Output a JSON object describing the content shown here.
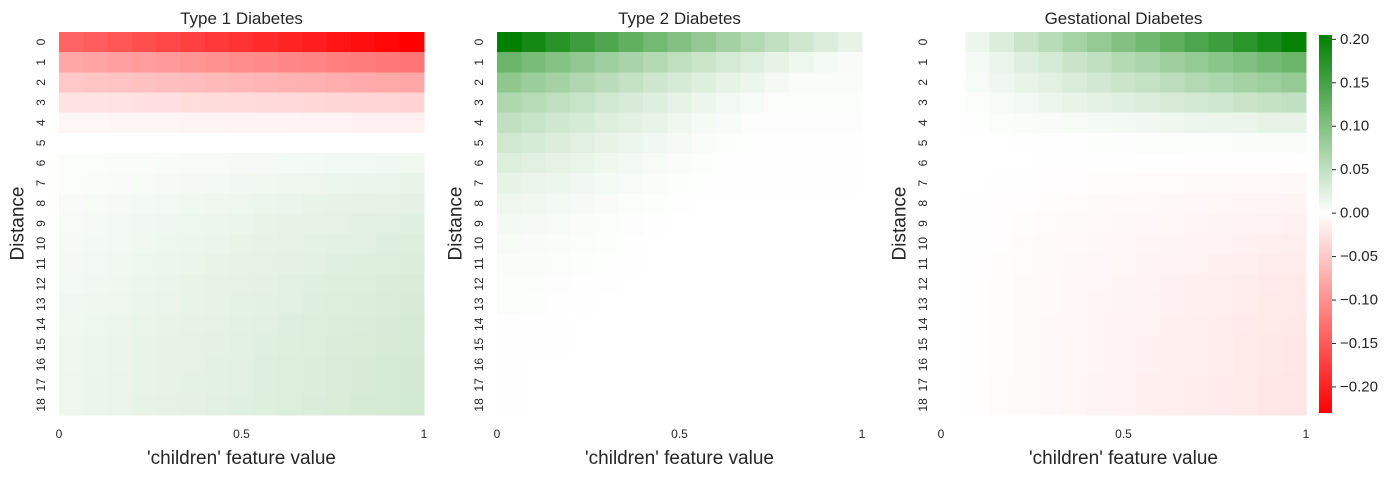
{
  "colorbar": {
    "ticks": [
      0.2,
      0.15,
      0.1,
      0.05,
      0.0,
      -0.05,
      -0.1,
      -0.15,
      -0.2
    ],
    "tick_labels": [
      "0.20",
      "0.15",
      "0.10",
      "0.05",
      "0.00",
      "−0.05",
      "−0.10",
      "−0.15",
      "−0.20"
    ],
    "vmin": -0.23,
    "vmax": 0.205,
    "colors": {
      "negative": "#ff0000",
      "zero": "#ffffff",
      "positive": "#008000"
    }
  },
  "chart_data": [
    {
      "type": "heatmap",
      "title": "Type 1 Diabetes",
      "xlabel": "'children' feature value",
      "ylabel": "Distance",
      "x_ticks": [
        "0",
        "0.5",
        "1"
      ],
      "y_categories": [
        "0",
        "1",
        "2",
        "3",
        "4",
        "5",
        "6",
        "7",
        "8",
        "9",
        "10",
        "11",
        "12",
        "13",
        "14",
        "15",
        "16",
        "17",
        "18"
      ],
      "n_cols": 15,
      "pattern": {
        "kind": "type1",
        "row_start": [
          -0.14,
          -0.08,
          -0.05,
          -0.025,
          -0.008,
          0,
          0.003,
          0.004,
          0.006,
          0.007,
          0.008,
          0.009,
          0.01,
          0.011,
          0.012,
          0.013,
          0.013,
          0.014,
          0.014
        ],
        "row_end": [
          -0.23,
          -0.125,
          -0.08,
          -0.04,
          -0.013,
          0,
          0.012,
          0.018,
          0.022,
          0.025,
          0.027,
          0.029,
          0.031,
          0.032,
          0.033,
          0.034,
          0.035,
          0.035,
          0.036
        ]
      }
    },
    {
      "type": "heatmap",
      "title": "Type 2 Diabetes",
      "xlabel": "'children' feature value",
      "ylabel": "Distance",
      "x_ticks": [
        "0",
        "0.5",
        "1"
      ],
      "y_categories": [
        "0",
        "1",
        "2",
        "3",
        "4",
        "5",
        "6",
        "7",
        "8",
        "9",
        "10",
        "11",
        "12",
        "13",
        "14",
        "15",
        "16",
        "17",
        "18"
      ],
      "n_cols": 15,
      "pattern": {
        "kind": "type2",
        "row_start": [
          0.205,
          0.12,
          0.09,
          0.065,
          0.05,
          0.038,
          0.028,
          0.02,
          0.014,
          0.01,
          0.007,
          0.005,
          0.004,
          0.003,
          0.002,
          0.002,
          0.001,
          0.001,
          0.001
        ]
      }
    },
    {
      "type": "heatmap",
      "title": "Gestational Diabetes",
      "xlabel": "'children' feature value",
      "ylabel": "Distance",
      "x_ticks": [
        "0",
        "0.5",
        "1"
      ],
      "y_categories": [
        "0",
        "1",
        "2",
        "3",
        "4",
        "5",
        "6",
        "7",
        "8",
        "9",
        "10",
        "11",
        "12",
        "13",
        "14",
        "15",
        "16",
        "17",
        "18"
      ],
      "n_cols": 15,
      "pattern": {
        "kind": "gest",
        "row_end": [
          0.2,
          0.12,
          0.085,
          0.05,
          0.02,
          0.005,
          -0.002,
          -0.006,
          -0.01,
          -0.013,
          -0.015,
          -0.017,
          -0.019,
          -0.02,
          -0.021,
          -0.022,
          -0.022,
          -0.023,
          -0.023
        ]
      }
    }
  ]
}
